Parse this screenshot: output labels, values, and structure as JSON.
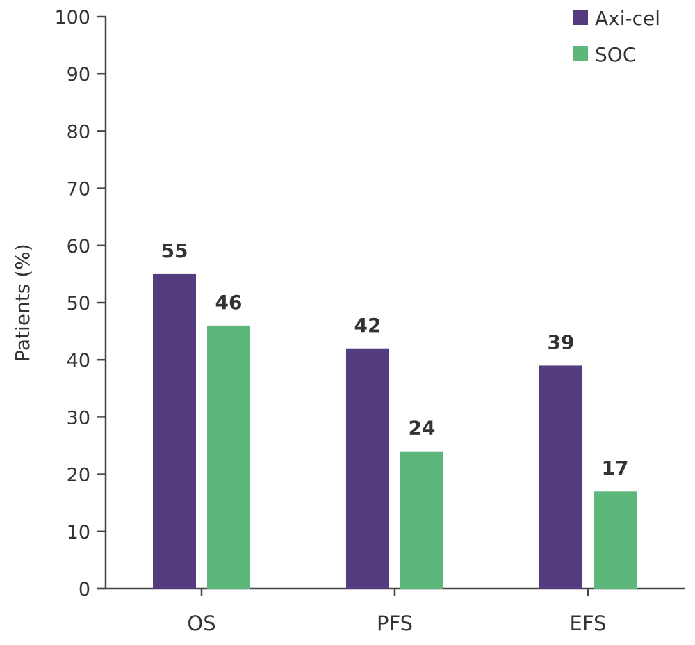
{
  "chart_data": {
    "type": "bar",
    "title": "",
    "xlabel": "",
    "ylabel": "Patients (%)",
    "ylim": [
      0,
      100
    ],
    "yticks": [
      0,
      10,
      20,
      30,
      40,
      50,
      60,
      70,
      80,
      90,
      100
    ],
    "categories": [
      "OS",
      "PFS",
      "EFS"
    ],
    "series": [
      {
        "name": "Axi-cel",
        "color": "#553C7F",
        "values": [
          55,
          42,
          39
        ]
      },
      {
        "name": "SOC",
        "color": "#5DB67A",
        "values": [
          46,
          24,
          17
        ]
      }
    ],
    "legend": "top-right",
    "grid": false
  }
}
